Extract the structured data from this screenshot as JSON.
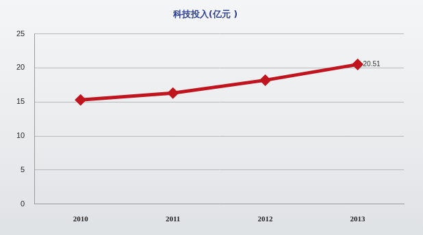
{
  "chart_data": {
    "type": "line",
    "title": "科技投入(亿元 )",
    "categories": [
      "2010",
      "2011",
      "2012",
      "2013"
    ],
    "values": [
      15.3,
      16.3,
      18.2,
      20.51
    ],
    "value_labels": [
      null,
      null,
      null,
      "20.51"
    ],
    "data_labels": true,
    "color": "#c0151f",
    "marker": "diamond",
    "ylim": [
      0,
      25
    ],
    "yticks": [
      0,
      5,
      10,
      15,
      20,
      25
    ],
    "grid": true
  }
}
